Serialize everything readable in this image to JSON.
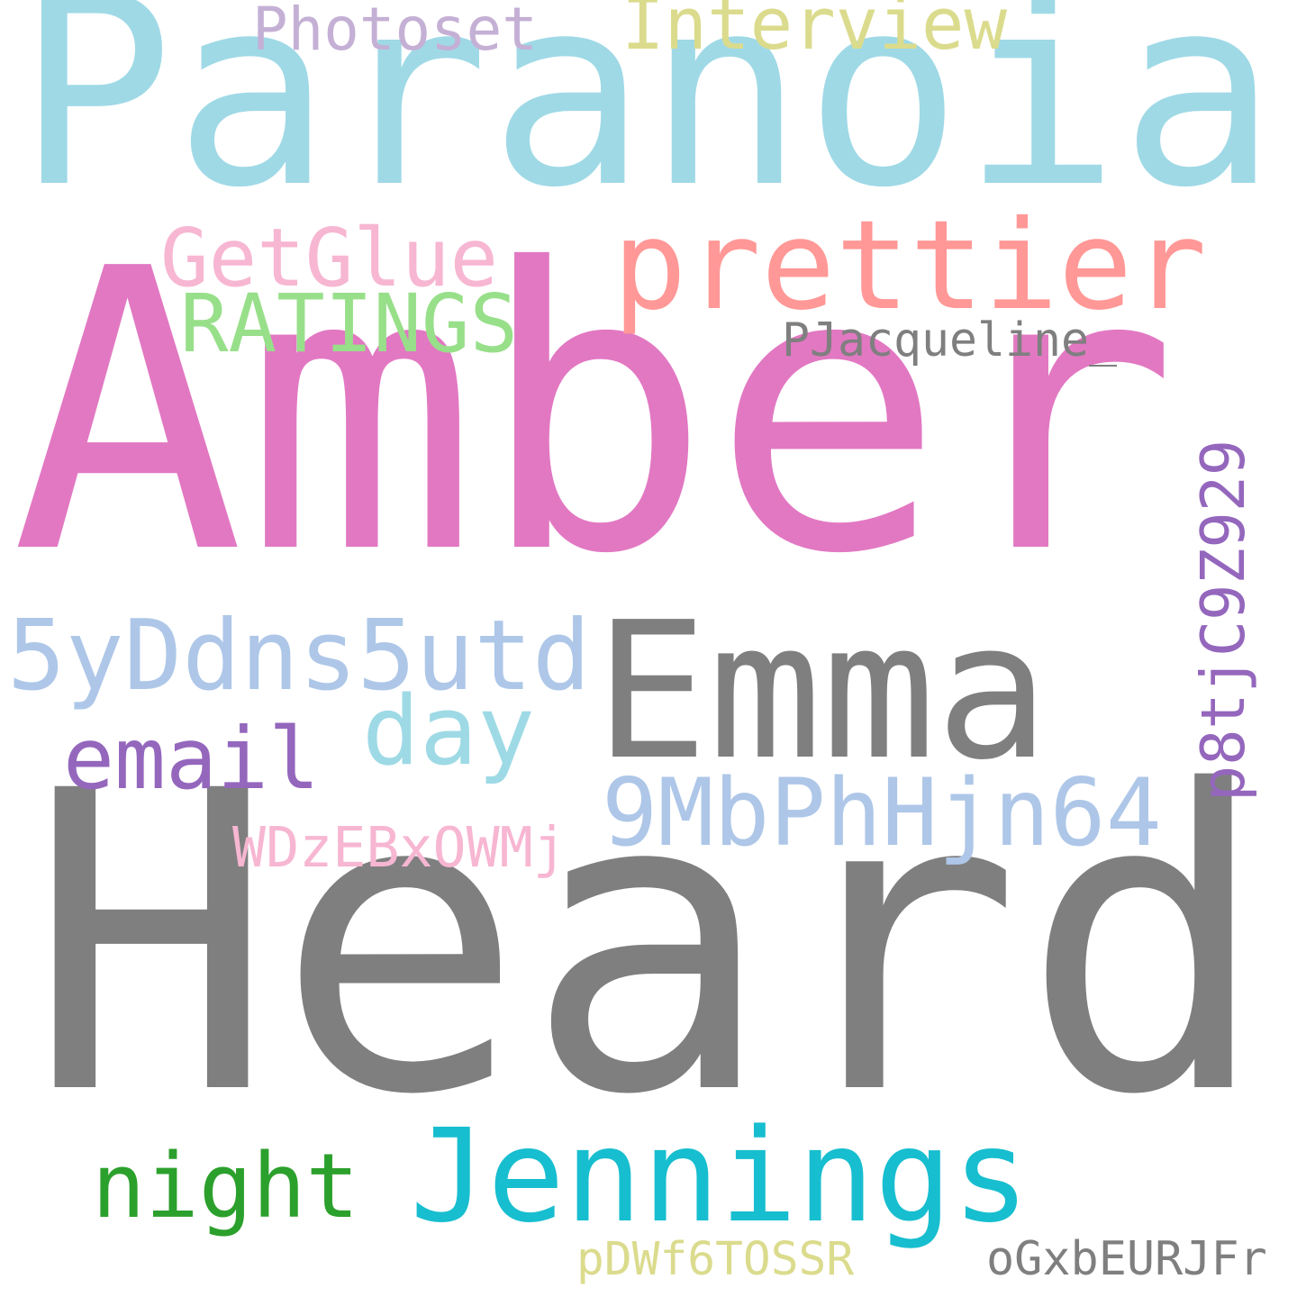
{
  "words": [
    {
      "text": "Paranoia",
      "color": "#9fd9e6",
      "orientation": "horizontal"
    },
    {
      "text": "Amber",
      "color": "#e278c2",
      "orientation": "horizontal"
    },
    {
      "text": "Heard",
      "color": "#7f7f7f",
      "orientation": "horizontal"
    },
    {
      "text": "Emma",
      "color": "#7f7f7f",
      "orientation": "horizontal"
    },
    {
      "text": "prettier",
      "color": "#ff9896",
      "orientation": "horizontal"
    },
    {
      "text": "Jennings",
      "color": "#17becf",
      "orientation": "horizontal"
    },
    {
      "text": "5yDdns5utd",
      "color": "#aec7e8",
      "orientation": "horizontal"
    },
    {
      "text": "9MbPhHjn64",
      "color": "#aec7e8",
      "orientation": "horizontal"
    },
    {
      "text": "GetGlue",
      "color": "#f7b6d2",
      "orientation": "horizontal"
    },
    {
      "text": "RATINGS",
      "color": "#98df8a",
      "orientation": "horizontal"
    },
    {
      "text": "night",
      "color": "#2ca02c",
      "orientation": "horizontal"
    },
    {
      "text": "email",
      "color": "#9467bd",
      "orientation": "horizontal"
    },
    {
      "text": "day",
      "color": "#9edae5",
      "orientation": "horizontal"
    },
    {
      "text": "p8tjC9Z929",
      "color": "#9467bd",
      "orientation": "vertical"
    },
    {
      "text": "Interview",
      "color": "#dbdb8d",
      "orientation": "horizontal"
    },
    {
      "text": "Photoset",
      "color": "#c5b0d5",
      "orientation": "horizontal"
    },
    {
      "text": "WDzEBxOWMj",
      "color": "#f7b6d2",
      "orientation": "horizontal"
    },
    {
      "text": "PJacqueline_",
      "color": "#7f7f7f",
      "orientation": "horizontal"
    },
    {
      "text": "pDWf6TOSSR",
      "color": "#dbdb8d",
      "orientation": "horizontal"
    },
    {
      "text": "oGxbEURJFr",
      "color": "#7f7f7f",
      "orientation": "horizontal"
    }
  ]
}
